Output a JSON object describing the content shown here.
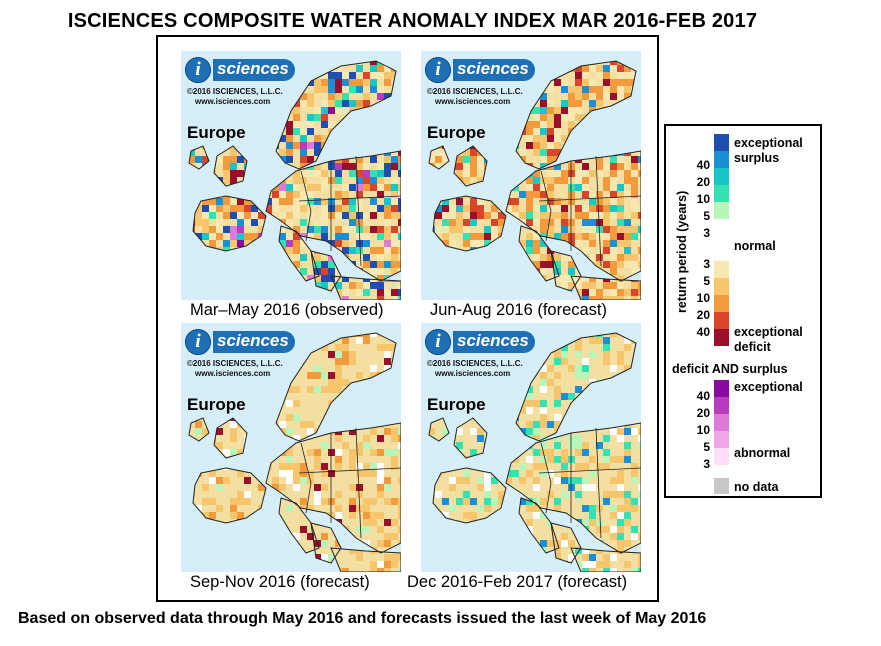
{
  "title": "ISCIENCES COMPOSITE WATER ANOMALY INDEX MAR 2016-FEB 2017",
  "footer": "Based on observed data through May 2016 and forecasts issued the last week of May 2016",
  "logo": {
    "letter": "i",
    "word": "sciences",
    "copyright": "©2016 ISCIENCES, L.L.C.",
    "url": "www.isciences.com"
  },
  "panels": [
    {
      "region": "Europe",
      "caption": "Mar–May 2016 (observed)",
      "scheme": "mixed"
    },
    {
      "region": "Europe",
      "caption": "Jun-Aug 2016 (forecast)",
      "scheme": "deficit"
    },
    {
      "region": "Europe",
      "caption": "Sep-Nov 2016 (forecast)",
      "scheme": "light"
    },
    {
      "region": "Europe",
      "caption": "Dec 2016-Feb 2017 (forecast)",
      "scheme": "light-surplus"
    }
  ],
  "legend": {
    "axis_label": "return period (years)",
    "exceptional_surplus": [
      "exceptional",
      "surplus"
    ],
    "normal": "normal",
    "exceptional_deficit": [
      "exceptional",
      "deficit"
    ],
    "both_heading": "deficit AND surplus",
    "both_exceptional": "exceptional",
    "both_abnormal": "abnormal",
    "no_data": "no data",
    "surplus_ticks": [
      "40",
      "20",
      "10",
      "5",
      "3"
    ],
    "deficit_ticks": [
      "3",
      "5",
      "10",
      "20",
      "40"
    ],
    "both_ticks": [
      "40",
      "20",
      "10",
      "5",
      "3"
    ],
    "colors": {
      "surplus": [
        "#1c4fb0",
        "#1a8fd6",
        "#18c6c6",
        "#33e2b0",
        "#b8f5b8"
      ],
      "normal": "#ffffff",
      "deficit": [
        "#f6e8b0",
        "#f7c56b",
        "#f29a3c",
        "#d8452b",
        "#9a0f2c"
      ],
      "both": [
        "#8a0aa0",
        "#b93cbf",
        "#e07ad8",
        "#f0a8e8",
        "#fde0f6"
      ],
      "no_data": "#c8c8c8",
      "ocean": "#d6eef8",
      "land_base": "#f3dfa2"
    }
  }
}
